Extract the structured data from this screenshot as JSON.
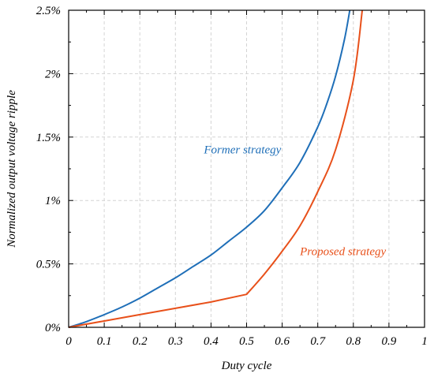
{
  "chart_data": {
    "type": "line",
    "title": "",
    "xlabel": "Duty cycle",
    "ylabel": "Normalized output voltage ripple",
    "xlim": [
      0,
      1
    ],
    "ylim": [
      0,
      2.5
    ],
    "grid": true,
    "x_ticks": [
      0,
      0.1,
      0.2,
      0.3,
      0.4,
      0.5,
      0.6,
      0.7,
      0.8,
      0.9,
      1
    ],
    "x_tick_labels": [
      "0",
      "0.1",
      "0.2",
      "0.3",
      "0.4",
      "0.5",
      "0.6",
      "0.7",
      "0.8",
      "0.9",
      "1"
    ],
    "y_ticks": [
      0,
      0.5,
      1,
      1.5,
      2,
      2.5
    ],
    "y_tick_labels": [
      "0%",
      "0.5%",
      "1%",
      "1.5%",
      "2%",
      "2.5%"
    ],
    "series": [
      {
        "name": "Former strategy",
        "color": "#1f6fb8",
        "x": [
          0,
          0.05,
          0.1,
          0.15,
          0.2,
          0.25,
          0.3,
          0.35,
          0.4,
          0.45,
          0.5,
          0.55,
          0.6,
          0.65,
          0.7,
          0.725,
          0.75,
          0.775,
          0.79
        ],
        "y": [
          0,
          0.045,
          0.1,
          0.16,
          0.23,
          0.31,
          0.39,
          0.48,
          0.57,
          0.68,
          0.79,
          0.92,
          1.1,
          1.3,
          1.58,
          1.76,
          1.98,
          2.27,
          2.5
        ]
      },
      {
        "name": "Proposed strategy",
        "color": "#e8501a",
        "x": [
          0,
          0.1,
          0.2,
          0.3,
          0.4,
          0.5,
          0.55,
          0.6,
          0.65,
          0.7,
          0.75,
          0.8,
          0.825
        ],
        "y": [
          0,
          0.05,
          0.1,
          0.15,
          0.2,
          0.26,
          0.42,
          0.6,
          0.8,
          1.07,
          1.4,
          1.95,
          2.5
        ]
      }
    ],
    "annotations": [
      {
        "text": "Former strategy",
        "x": 0.38,
        "y": 1.37,
        "color": "#1f6fb8"
      },
      {
        "text": "Proposed strategy",
        "x": 0.65,
        "y": 0.57,
        "color": "#e8501a"
      }
    ]
  }
}
